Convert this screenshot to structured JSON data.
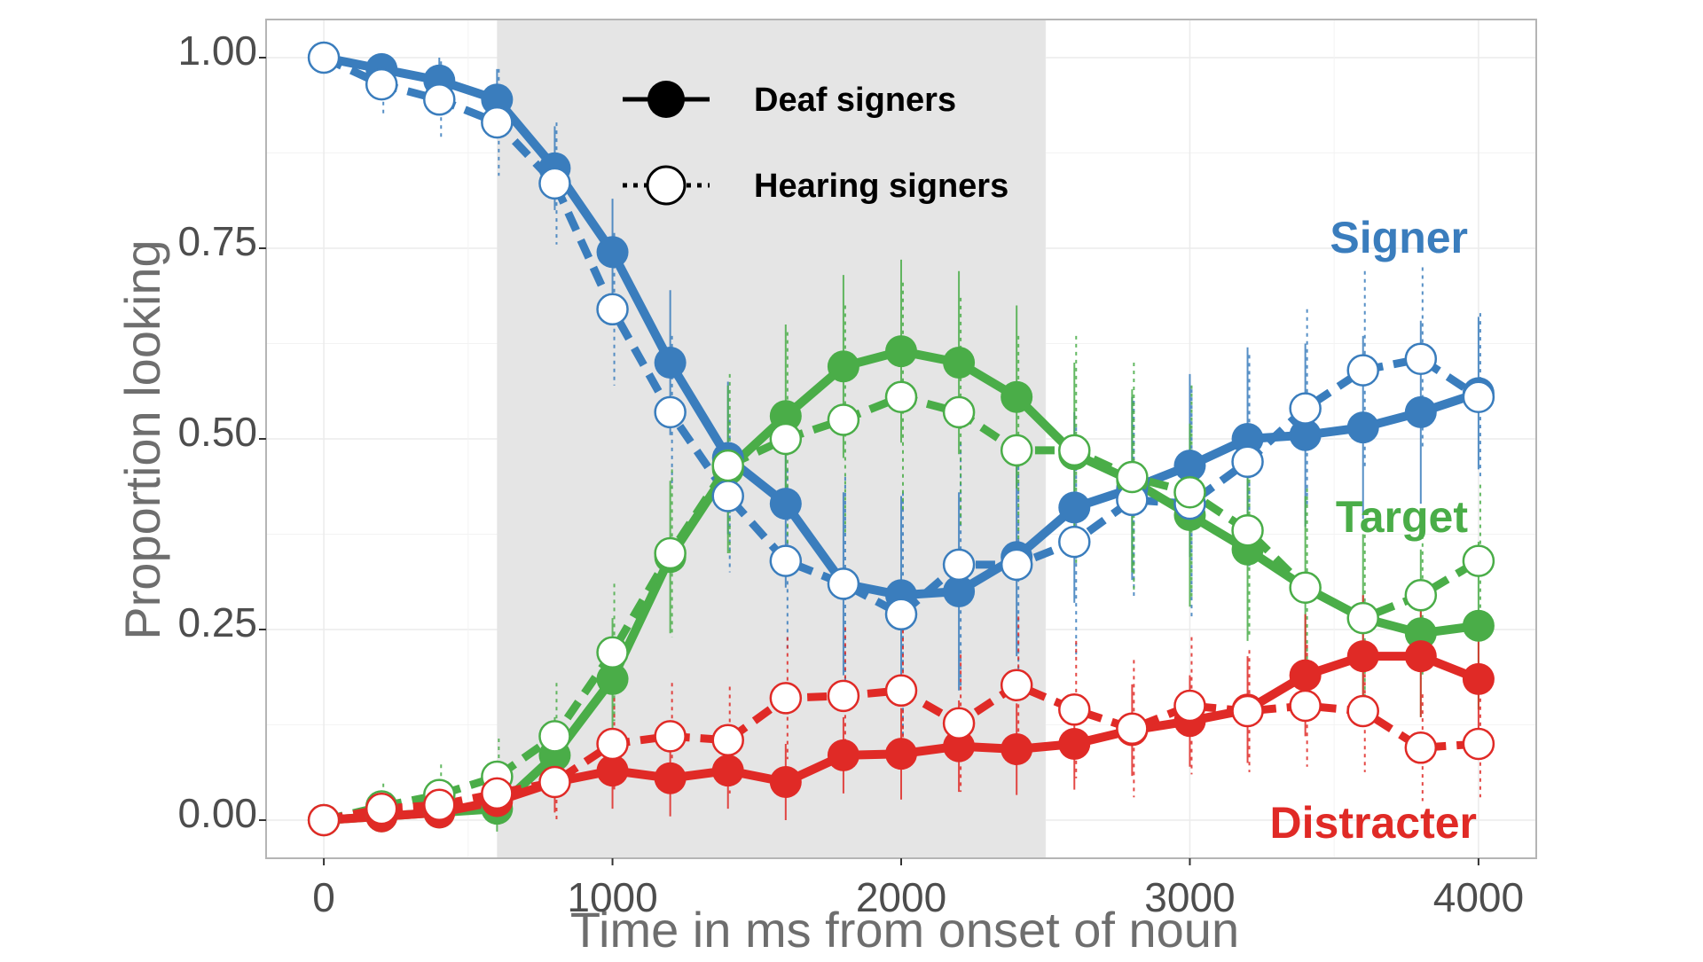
{
  "chart_data": {
    "type": "line",
    "xlabel": "Time in ms from onset of noun",
    "ylabel": "Proportion looking",
    "xlim": [
      -200,
      4200
    ],
    "ylim": [
      -0.05,
      1.05
    ],
    "xticks": [
      0,
      1000,
      2000,
      3000,
      4000
    ],
    "xtick_labels": [
      "0",
      "1000",
      "2000",
      "3000",
      "4000"
    ],
    "yticks": [
      0,
      0.25,
      0.5,
      0.75,
      1.0
    ],
    "ytick_labels": [
      "0.00",
      "0.25",
      "0.50",
      "0.75",
      "1.00"
    ],
    "grid": true,
    "shaded_region": {
      "x": [
        600,
        2500
      ],
      "color": "#e5e5e5"
    },
    "legend": {
      "placement": "top-center",
      "entries": [
        {
          "label": "Deaf signers",
          "marker": "filled",
          "line": "solid"
        },
        {
          "label": "Hearing signers",
          "marker": "open",
          "line": "dotted"
        }
      ]
    },
    "x": [
      0,
      200,
      400,
      600,
      800,
      1000,
      1200,
      1400,
      1600,
      1800,
      2000,
      2200,
      2400,
      2600,
      2800,
      3000,
      3200,
      3400,
      3600,
      3800,
      4000
    ],
    "series": [
      {
        "name": "Signer",
        "color": "#3a7dbd",
        "group": "Deaf signers",
        "values": [
          1.0,
          0.985,
          0.97,
          0.945,
          0.855,
          0.745,
          0.6,
          0.475,
          0.415,
          0.31,
          0.295,
          0.3,
          0.345,
          0.41,
          0.435,
          0.465,
          0.5,
          0.505,
          0.515,
          0.535,
          0.56
        ],
        "error": [
          0,
          0.02,
          0.03,
          0.04,
          0.055,
          0.07,
          0.095,
          0.1,
          0.11,
          0.12,
          0.13,
          0.13,
          0.13,
          0.125,
          0.12,
          0.12,
          0.12,
          0.12,
          0.12,
          0.12,
          0.1
        ]
      },
      {
        "name": "Signer",
        "color": "#3a7dbd",
        "group": "Hearing signers",
        "values": [
          1.0,
          0.965,
          0.945,
          0.915,
          0.835,
          0.67,
          0.535,
          0.425,
          0.34,
          0.31,
          0.27,
          0.335,
          0.335,
          0.365,
          0.42,
          0.415,
          0.47,
          0.54,
          0.59,
          0.605,
          0.555
        ],
        "error": [
          0,
          0.04,
          0.05,
          0.07,
          0.08,
          0.1,
          0.1,
          0.1,
          0.12,
          0.14,
          0.16,
          0.16,
          0.16,
          0.15,
          0.13,
          0.15,
          0.14,
          0.13,
          0.13,
          0.12,
          0.11
        ]
      },
      {
        "name": "Target",
        "color": "#4aad48",
        "group": "Deaf signers",
        "values": [
          0.0,
          0.005,
          0.01,
          0.015,
          0.085,
          0.185,
          0.345,
          0.46,
          0.53,
          0.595,
          0.615,
          0.6,
          0.555,
          0.48,
          0.445,
          0.4,
          0.355,
          0.305,
          0.265,
          0.245,
          0.255
        ],
        "error": [
          0,
          0.01,
          0.02,
          0.03,
          0.05,
          0.08,
          0.1,
          0.11,
          0.12,
          0.12,
          0.12,
          0.12,
          0.12,
          0.12,
          0.12,
          0.12,
          0.12,
          0.12,
          0.11,
          0.11,
          0.11
        ]
      },
      {
        "name": "Target",
        "color": "#4aad48",
        "group": "Hearing signers",
        "values": [
          0.0,
          0.018,
          0.033,
          0.057,
          0.11,
          0.22,
          0.35,
          0.465,
          0.5,
          0.525,
          0.555,
          0.535,
          0.485,
          0.485,
          0.45,
          0.43,
          0.38,
          0.305,
          0.265,
          0.295,
          0.34
        ],
        "error": [
          0,
          0.03,
          0.04,
          0.05,
          0.07,
          0.09,
          0.11,
          0.12,
          0.14,
          0.15,
          0.15,
          0.15,
          0.15,
          0.15,
          0.15,
          0.14,
          0.14,
          0.13,
          0.12,
          0.11,
          0.1
        ]
      },
      {
        "name": "Distracter",
        "color": "#e02a26",
        "group": "Deaf signers",
        "values": [
          0.0,
          0.005,
          0.01,
          0.025,
          0.05,
          0.065,
          0.055,
          0.065,
          0.05,
          0.085,
          0.087,
          0.097,
          0.093,
          0.1,
          0.118,
          0.13,
          0.145,
          0.19,
          0.215,
          0.215,
          0.185
        ],
        "error": [
          0,
          0.01,
          0.02,
          0.03,
          0.04,
          0.05,
          0.05,
          0.05,
          0.05,
          0.05,
          0.06,
          0.06,
          0.06,
          0.06,
          0.06,
          0.06,
          0.07,
          0.08,
          0.08,
          0.08,
          0.08
        ]
      },
      {
        "name": "Distracter",
        "color": "#e02a26",
        "group": "Hearing signers",
        "values": [
          0.0,
          0.015,
          0.02,
          0.035,
          0.05,
          0.1,
          0.11,
          0.105,
          0.16,
          0.163,
          0.17,
          0.127,
          0.177,
          0.145,
          0.12,
          0.15,
          0.143,
          0.15,
          0.143,
          0.095,
          0.1
        ],
        "error": [
          0,
          0.02,
          0.03,
          0.04,
          0.05,
          0.06,
          0.07,
          0.07,
          0.08,
          0.09,
          0.09,
          0.09,
          0.09,
          0.09,
          0.09,
          0.09,
          0.08,
          0.08,
          0.08,
          0.07,
          0.07
        ]
      }
    ],
    "series_labels": [
      {
        "text": "Signer",
        "color": "#3a7dbd"
      },
      {
        "text": "Target",
        "color": "#4aad48"
      },
      {
        "text": "Distracter",
        "color": "#e02a26"
      }
    ]
  }
}
